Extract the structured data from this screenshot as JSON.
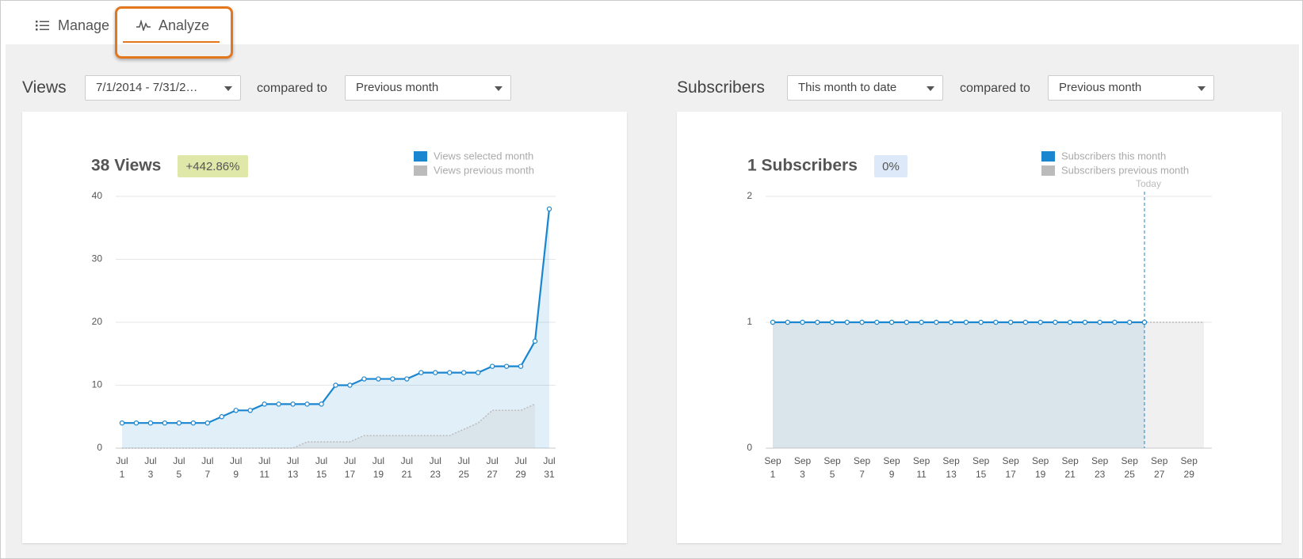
{
  "tabs": [
    "Manage",
    "Analyze"
  ],
  "panels": [
    {
      "label": "Views",
      "range": "7/1/2014 - 7/31/2…",
      "compare_label": "compared to",
      "compare": "Previous month"
    },
    {
      "label": "Subscribers",
      "range": "This month to date",
      "compare_label": "compared to",
      "compare": "Previous month"
    }
  ],
  "chart_data": [
    {
      "type": "line",
      "title": "38 Views",
      "change_label": "+442.86%",
      "categories": [
        "Jul 1",
        null,
        "Jul 3",
        null,
        "Jul 5",
        null,
        "Jul 7",
        null,
        "Jul 9",
        null,
        "Jul 11",
        null,
        "Jul 13",
        null,
        "Jul 15",
        null,
        "Jul 17",
        null,
        "Jul 19",
        null,
        "Jul 21",
        null,
        "Jul 23",
        null,
        "Jul 25",
        null,
        "Jul 27",
        null,
        "Jul 29",
        null,
        "Jul 31"
      ],
      "series": [
        {
          "name": "Views selected month",
          "color": "#1a86d0",
          "values": [
            4,
            4,
            4,
            4,
            4,
            4,
            4,
            5,
            6,
            6,
            7,
            7,
            7,
            7,
            7,
            10,
            10,
            11,
            11,
            11,
            11,
            12,
            12,
            12,
            12,
            12,
            13,
            13,
            13,
            17,
            38
          ]
        },
        {
          "name": "Views previous month",
          "color": "#bbbbbb",
          "values": [
            0,
            0,
            0,
            0,
            0,
            0,
            0,
            0,
            0,
            0,
            0,
            0,
            0,
            1,
            1,
            1,
            1,
            2,
            2,
            2,
            2,
            2,
            2,
            2,
            3,
            4,
            6,
            6,
            6,
            7,
            null
          ]
        }
      ],
      "ylim": [
        0,
        40
      ],
      "yticks": [
        0,
        10,
        20,
        30,
        40
      ],
      "grid": true,
      "legend": "upper right",
      "badge_color": "#dfe8a8"
    },
    {
      "type": "line",
      "title": "1 Subscribers",
      "change_label": "0%",
      "categories": [
        "Sep 1",
        null,
        "Sep 3",
        null,
        "Sep 5",
        null,
        "Sep 7",
        null,
        "Sep 9",
        null,
        "Sep 11",
        null,
        "Sep 13",
        null,
        "Sep 15",
        null,
        "Sep 17",
        null,
        "Sep 19",
        null,
        "Sep 21",
        null,
        "Sep 23",
        null,
        "Sep 25",
        null,
        "Sep 27",
        null,
        "Sep 29",
        null
      ],
      "series": [
        {
          "name": "Subscribers this month",
          "color": "#1a86d0",
          "values": [
            1,
            1,
            1,
            1,
            1,
            1,
            1,
            1,
            1,
            1,
            1,
            1,
            1,
            1,
            1,
            1,
            1,
            1,
            1,
            1,
            1,
            1,
            1,
            1,
            1,
            1,
            null,
            null,
            null,
            null
          ]
        },
        {
          "name": "Subscribers previous month",
          "color": "#bbbbbb",
          "values": [
            1,
            1,
            1,
            1,
            1,
            1,
            1,
            1,
            1,
            1,
            1,
            1,
            1,
            1,
            1,
            1,
            1,
            1,
            1,
            1,
            1,
            1,
            1,
            1,
            1,
            1,
            1,
            1,
            1,
            1
          ]
        }
      ],
      "ylim": [
        0,
        2
      ],
      "yticks": [
        0,
        1,
        2
      ],
      "grid": true,
      "legend": "upper right",
      "badge_color": "#dde9f8",
      "annotations": [
        "Today"
      ]
    }
  ]
}
